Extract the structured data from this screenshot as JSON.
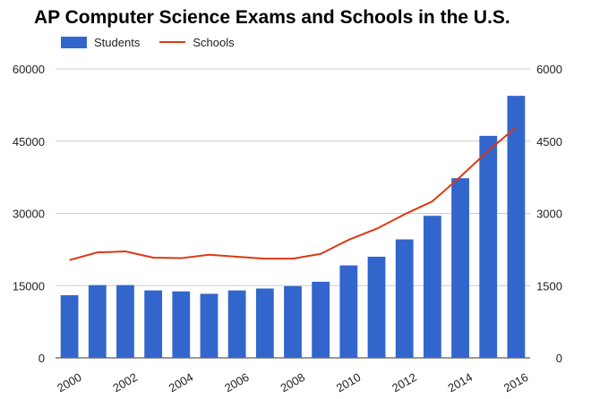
{
  "chart_data": {
    "type": "bar",
    "title": "AP Computer Science Exams and Schools in the U.S.",
    "x": [
      2000,
      2001,
      2002,
      2003,
      2004,
      2005,
      2006,
      2007,
      2008,
      2009,
      2010,
      2011,
      2012,
      2013,
      2014,
      2015,
      2016
    ],
    "x_tick_labels": [
      "2000",
      "2002",
      "2004",
      "2006",
      "2008",
      "2010",
      "2012",
      "2014",
      "2016"
    ],
    "series": [
      {
        "name": "Students",
        "type": "bar",
        "axis": "left",
        "color": "#3366cc",
        "values": [
          13000,
          15100,
          15100,
          14000,
          13800,
          13300,
          14000,
          14400,
          14900,
          15800,
          19200,
          21000,
          24600,
          29500,
          37300,
          46100,
          54400
        ]
      },
      {
        "name": "Schools",
        "type": "line",
        "axis": "right",
        "color": "#dc3912",
        "values": [
          2030,
          2190,
          2210,
          2080,
          2070,
          2140,
          2100,
          2060,
          2060,
          2160,
          2450,
          2680,
          2980,
          3250,
          3760,
          4300,
          4790
        ]
      }
    ],
    "y_left": {
      "ylim": [
        0,
        60000
      ],
      "ticks": [
        "0",
        "15000",
        "30000",
        "45000",
        "60000"
      ]
    },
    "y_right": {
      "ylim": [
        0,
        6000
      ],
      "ticks": [
        "0",
        "1500",
        "3000",
        "4500",
        "6000"
      ]
    },
    "grid": true,
    "legend_position": "top-left"
  }
}
